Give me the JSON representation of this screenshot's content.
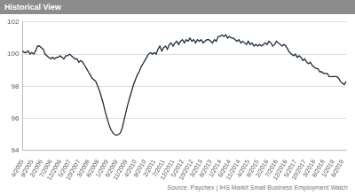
{
  "chart_data": {
    "type": "line",
    "title": "Historical View",
    "source": "Source: Paychex | IHS Markit Small Business Employment Watch",
    "categories": [
      "4/2005",
      null,
      null,
      null,
      null,
      "9/2005",
      null,
      null,
      null,
      null,
      "2/2006",
      null,
      null,
      null,
      null,
      "7/2006",
      null,
      null,
      null,
      null,
      "12/2006",
      null,
      null,
      null,
      null,
      "5/2007",
      null,
      null,
      null,
      null,
      "10/2007",
      null,
      null,
      null,
      null,
      "3/2008",
      null,
      null,
      null,
      null,
      "8/2008",
      null,
      null,
      null,
      null,
      "1/2009",
      null,
      null,
      null,
      null,
      "6/2009",
      null,
      null,
      null,
      null,
      "11/2009",
      null,
      null,
      null,
      null,
      "4/2010",
      null,
      null,
      null,
      null,
      "9/2010",
      null,
      null,
      null,
      null,
      "2/2011",
      null,
      null,
      null,
      null,
      "7/2011",
      null,
      null,
      null,
      null,
      "12/2011",
      null,
      null,
      null,
      null,
      "5/2012",
      null,
      null,
      null,
      null,
      "10/2012",
      null,
      null,
      null,
      null,
      "3/2013",
      null,
      null,
      null,
      null,
      "8/2013",
      null,
      null,
      null,
      null,
      "1/2014",
      null,
      null,
      null,
      null,
      "6/2014",
      null,
      null,
      null,
      null,
      "11/2014",
      null,
      null,
      null,
      null,
      "4/2015",
      null,
      null,
      null,
      null,
      "9/2015",
      null,
      null,
      null,
      null,
      "2/2016",
      null,
      null,
      null,
      null,
      "7/2016",
      null,
      null,
      null,
      null,
      "12/2016",
      null,
      null,
      null,
      null,
      "5/2017",
      null,
      null,
      null,
      null,
      "10/2017",
      null,
      null,
      null,
      null,
      "3/2018",
      null,
      null,
      null,
      null,
      "8/2018",
      null,
      null,
      null,
      null,
      "1/2019",
      null,
      null,
      null,
      null,
      "6/2019",
      null,
      null
    ],
    "values": [
      100.2,
      100.1,
      100.1,
      100.2,
      100.0,
      100.1,
      100.0,
      100.2,
      100.5,
      100.5,
      100.4,
      100.3,
      100.0,
      99.9,
      99.8,
      99.7,
      99.8,
      99.7,
      99.8,
      99.8,
      99.9,
      99.8,
      99.7,
      99.9,
      99.9,
      100.0,
      99.9,
      99.8,
      99.7,
      99.7,
      99.5,
      99.6,
      99.5,
      99.3,
      99.1,
      98.9,
      98.7,
      98.5,
      98.4,
      98.3,
      98.0,
      97.7,
      97.3,
      96.9,
      96.4,
      96.0,
      95.6,
      95.3,
      95.1,
      95.0,
      94.95,
      95.0,
      95.1,
      95.4,
      95.9,
      96.4,
      96.9,
      97.3,
      97.7,
      98.1,
      98.4,
      98.7,
      98.9,
      99.2,
      99.4,
      99.6,
      99.8,
      100.0,
      100.1,
      100.0,
      100.1,
      100.0,
      100.3,
      100.5,
      100.2,
      100.4,
      100.5,
      100.3,
      100.6,
      100.7,
      100.5,
      100.7,
      100.8,
      100.6,
      100.8,
      100.9,
      100.7,
      100.9,
      100.8,
      101.0,
      100.8,
      100.9,
      100.7,
      100.9,
      100.8,
      100.9,
      100.7,
      100.8,
      100.9,
      100.9,
      100.8,
      100.7,
      100.9,
      100.8,
      101.1,
      101.1,
      101.2,
      101.1,
      101.2,
      101.0,
      101.1,
      101.0,
      101.0,
      100.9,
      100.8,
      100.9,
      100.7,
      100.8,
      100.7,
      100.6,
      100.8,
      100.6,
      100.7,
      100.5,
      100.6,
      100.5,
      100.6,
      100.5,
      100.6,
      100.7,
      100.6,
      100.8,
      100.7,
      100.5,
      100.6,
      100.8,
      100.7,
      100.6,
      100.5,
      100.6,
      100.5,
      100.3,
      100.1,
      100.0,
      99.9,
      100.0,
      99.8,
      99.9,
      99.8,
      99.6,
      99.7,
      99.5,
      99.4,
      99.5,
      99.3,
      99.2,
      99.1,
      99.1,
      98.9,
      98.9,
      98.8,
      98.8,
      98.8,
      98.6,
      98.6,
      98.6,
      98.6,
      98.6,
      98.5,
      98.3,
      98.2,
      98.1,
      98.3
    ],
    "color": "#1c2b3a",
    "ylim": [
      94,
      102
    ],
    "yticks": [
      94,
      96,
      98,
      100,
      102
    ],
    "grid": true
  }
}
